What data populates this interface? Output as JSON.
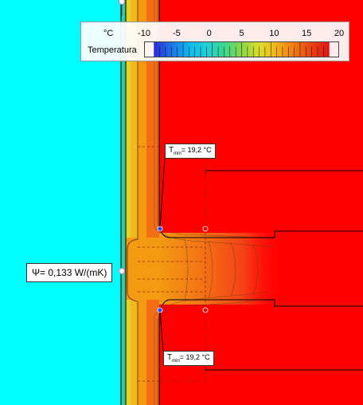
{
  "legend": {
    "unit": "°C",
    "label": "Temperatura",
    "ticks": [
      "-10",
      "-5",
      "0",
      "5",
      "10",
      "15",
      "20"
    ],
    "scale_min": -10,
    "scale_max": 20,
    "gradient_colors": [
      "#2b2bd6",
      "#1f74e8",
      "#11b6ef",
      "#22cfd6",
      "#3cd68f",
      "#8ad64a",
      "#d9dd2a",
      "#f3b21a",
      "#ef7a12",
      "#e94014",
      "#e01616"
    ]
  },
  "annotations": {
    "tmin_top": {
      "symbol": "T",
      "subscript": "min",
      "value": "= 19,2 °C"
    },
    "tmin_bottom": {
      "symbol": "T",
      "subscript": "min",
      "value": "= 19,2 °C"
    },
    "psi": {
      "text": "Ψ= 0,133 W/(mK)"
    }
  },
  "colors": {
    "exterior": "#00ffff",
    "interior": "#ff0000",
    "insulation_orange": "#f39a12",
    "marker_blue": "#1e4bff"
  }
}
